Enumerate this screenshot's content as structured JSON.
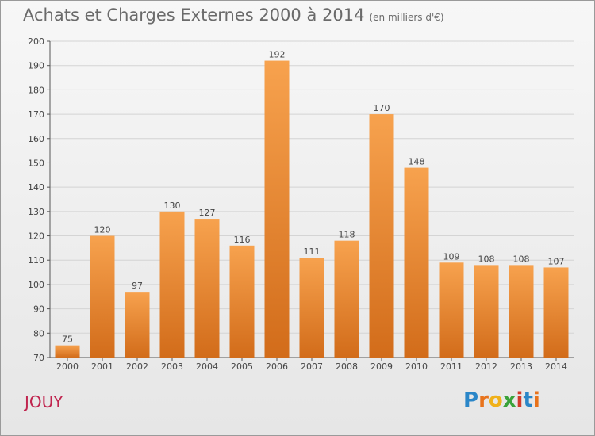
{
  "title": "Achats et Charges Externes 2000 à 2014",
  "subtitle": "(en milliers d'€)",
  "commune": "JOUY",
  "logo": {
    "text": "Proxiti",
    "letters": [
      "P",
      "r",
      "o",
      "x",
      "i",
      "t",
      "i"
    ],
    "colors": [
      "#2a86c8",
      "#e8731c",
      "#f0b11a",
      "#3aa23a",
      "#d23a2a",
      "#2a86c8",
      "#e8731c"
    ]
  },
  "colors": {
    "bar_top": "#f7a24e",
    "bar_bottom": "#d26c1a",
    "commune": "#c0254f",
    "grid": "#d4d4d4"
  },
  "chart_data": {
    "type": "bar",
    "title": "Achats et Charges Externes 2000 à 2014",
    "subtitle": "(en milliers d'€)",
    "categories": [
      "2000",
      "2001",
      "2002",
      "2003",
      "2004",
      "2005",
      "2006",
      "2007",
      "2008",
      "2009",
      "2010",
      "2011",
      "2012",
      "2013",
      "2014"
    ],
    "values": [
      75,
      120,
      97,
      130,
      127,
      116,
      192,
      111,
      118,
      170,
      148,
      109,
      108,
      108,
      107
    ],
    "ylim": [
      70,
      200
    ],
    "yticks": [
      70,
      80,
      90,
      100,
      110,
      120,
      130,
      140,
      150,
      160,
      170,
      180,
      190,
      200
    ],
    "grid": true,
    "data_labels": true
  }
}
